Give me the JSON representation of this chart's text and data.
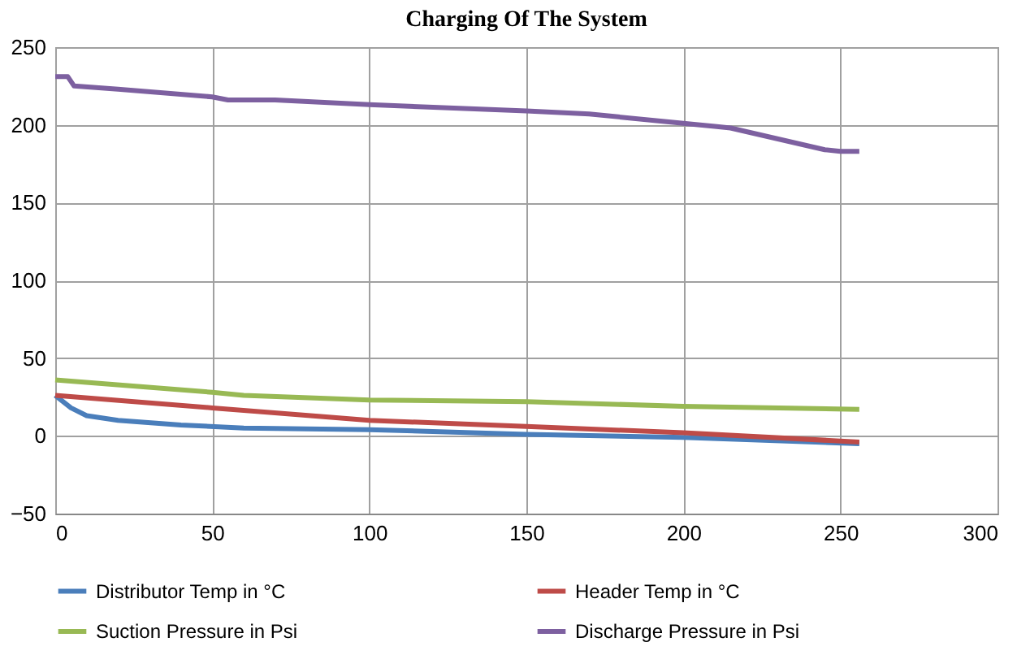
{
  "chart_data": {
    "type": "line",
    "title": "Charging Of The System",
    "xlim": [
      0,
      300
    ],
    "xticks": [
      0,
      50,
      100,
      150,
      200,
      250,
      300
    ],
    "ylim": [
      -50,
      250
    ],
    "yticks": [
      -50,
      0,
      50,
      100,
      150,
      200,
      250
    ],
    "grid": true,
    "legend": "bottom",
    "marker": "none",
    "line_style": "solid",
    "series": [
      {
        "name": "Distributor Temp in °C",
        "color": "#4a7ebb",
        "x": [
          0,
          5,
          10,
          20,
          40,
          60,
          100,
          150,
          200,
          256
        ],
        "values": [
          26,
          18,
          13,
          10,
          7,
          5,
          4,
          1,
          -1,
          -5
        ]
      },
      {
        "name": "Header Temp in °C",
        "color": "#be4b48",
        "x": [
          0,
          50,
          100,
          150,
          200,
          256
        ],
        "values": [
          26,
          18,
          10,
          6,
          2,
          -4
        ]
      },
      {
        "name": "Suction Pressure in Psi",
        "color": "#98b954",
        "x": [
          0,
          50,
          60,
          100,
          150,
          200,
          256
        ],
        "values": [
          36,
          28,
          26,
          23,
          22,
          19,
          17
        ]
      },
      {
        "name": "Discharge Pressure in Psi",
        "color": "#7d60a0",
        "x": [
          0,
          4,
          6,
          20,
          50,
          55,
          70,
          100,
          150,
          170,
          200,
          210,
          215,
          245,
          250,
          256
        ],
        "values": [
          231,
          231,
          225,
          223,
          218,
          216,
          216,
          213,
          209,
          207,
          201,
          199,
          198,
          184,
          183,
          183
        ]
      }
    ]
  }
}
